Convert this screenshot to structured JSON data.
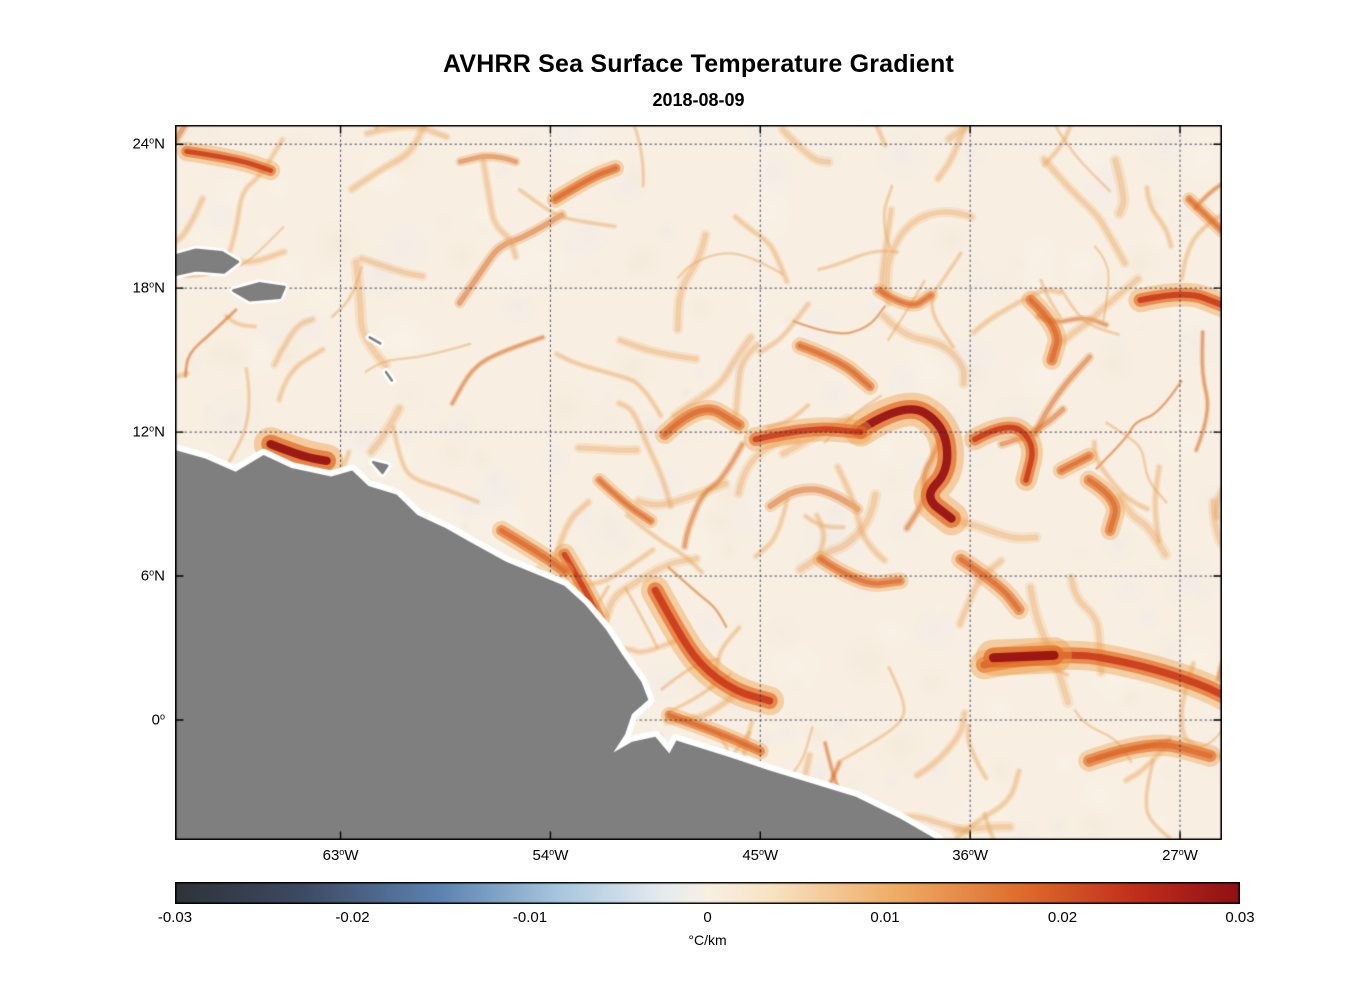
{
  "figure": {
    "title": "AVHRR Sea Surface Temperature Gradient",
    "subtitle": "2018-08-09"
  },
  "chart_data": {
    "type": "heatmap",
    "title": "AVHRR Sea Surface Temperature Gradient",
    "subtitle": "2018-08-09",
    "x_axis": {
      "ticks": [
        {
          "deg": "63",
          "dir": "W",
          "lon": -63
        },
        {
          "deg": "54",
          "dir": "W",
          "lon": -54
        },
        {
          "deg": "45",
          "dir": "W",
          "lon": -45
        },
        {
          "deg": "36",
          "dir": "W",
          "lon": -36
        },
        {
          "deg": "27",
          "dir": "W",
          "lon": -27
        }
      ],
      "range": [
        -70.1,
        -25.2
      ]
    },
    "y_axis": {
      "ticks": [
        {
          "deg": "24",
          "dir": "N",
          "lat": 24
        },
        {
          "deg": "18",
          "dir": "N",
          "lat": 18
        },
        {
          "deg": "12",
          "dir": "N",
          "lat": 12
        },
        {
          "deg": "6",
          "dir": "N",
          "lat": 6
        },
        {
          "deg": "0",
          "dir": "",
          "lat": 0
        }
      ],
      "range": [
        -5.0,
        24.8
      ]
    },
    "grid": "dotted",
    "colorbar": {
      "label": "°C/km",
      "min": -0.03,
      "max": 0.03,
      "ticks": [
        "-0.03",
        "-0.02",
        "-0.01",
        "0",
        "0.01",
        "0.02",
        "0.03"
      ],
      "stops": [
        {
          "pos": 0.0,
          "color": "#2f3338"
        },
        {
          "pos": 0.12,
          "color": "#3d4a63"
        },
        {
          "pos": 0.25,
          "color": "#5d83b0"
        },
        {
          "pos": 0.36,
          "color": "#a8c6de"
        },
        {
          "pos": 0.46,
          "color": "#e6ecef"
        },
        {
          "pos": 0.5,
          "color": "#f7f0e4"
        },
        {
          "pos": 0.56,
          "color": "#f8e3c3"
        },
        {
          "pos": 0.68,
          "color": "#eeab62"
        },
        {
          "pos": 0.8,
          "color": "#dd6a2a"
        },
        {
          "pos": 0.9,
          "color": "#c22f1c"
        },
        {
          "pos": 1.0,
          "color": "#8f1014"
        }
      ]
    },
    "map": {
      "ocean_base_color": "#f8efe2",
      "land_color": "#7f7f7f",
      "coast_halo_color": "#ffffff",
      "coastline": [
        [
          -71.5,
          11.3
        ],
        [
          -70.1,
          11.25
        ],
        [
          -68.8,
          10.9
        ],
        [
          -67.5,
          10.35
        ],
        [
          -66.3,
          11.05
        ],
        [
          -65.1,
          10.5
        ],
        [
          -63.4,
          10.15
        ],
        [
          -62.5,
          10.4
        ],
        [
          -61.8,
          9.75
        ],
        [
          -60.6,
          9.4
        ],
        [
          -59.7,
          8.55
        ],
        [
          -58.5,
          8.0
        ],
        [
          -57.4,
          7.4
        ],
        [
          -55.9,
          6.6
        ],
        [
          -54.4,
          6.0
        ],
        [
          -53.4,
          5.6
        ],
        [
          -52.5,
          4.8
        ],
        [
          -51.6,
          3.75
        ],
        [
          -50.9,
          2.7
        ],
        [
          -50.1,
          1.6
        ],
        [
          -49.8,
          0.85
        ],
        [
          -50.5,
          0.25
        ],
        [
          -50.8,
          -0.6
        ],
        [
          -51.3,
          -1.35
        ],
        [
          -50.5,
          -0.9
        ],
        [
          -49.5,
          -0.7
        ],
        [
          -48.9,
          -1.4
        ],
        [
          -48.6,
          -0.85
        ],
        [
          -47.6,
          -1.15
        ],
        [
          -46.3,
          -1.55
        ],
        [
          -44.6,
          -2.1
        ],
        [
          -42.9,
          -2.6
        ],
        [
          -40.9,
          -3.2
        ],
        [
          -39.0,
          -4.1
        ],
        [
          -37.4,
          -5.0
        ],
        [
          -36.9,
          -5.6
        ],
        [
          -71.5,
          -5.6
        ]
      ],
      "islands": [
        [
          [
            -70.3,
            19.3
          ],
          [
            -69.2,
            19.6
          ],
          [
            -68.1,
            19.5
          ],
          [
            -67.4,
            19.1
          ],
          [
            -68.0,
            18.65
          ],
          [
            -69.2,
            18.75
          ],
          [
            -70.3,
            18.5
          ]
        ],
        [
          [
            -67.6,
            17.9
          ],
          [
            -66.5,
            18.2
          ],
          [
            -65.4,
            18.05
          ],
          [
            -65.6,
            17.6
          ],
          [
            -66.9,
            17.5
          ]
        ],
        [
          [
            -61.75,
            15.95
          ],
          [
            -61.3,
            15.7
          ]
        ],
        [
          [
            -61.05,
            14.5
          ],
          [
            -60.8,
            14.15
          ]
        ],
        [
          [
            -61.6,
            10.75
          ],
          [
            -61.0,
            10.6
          ],
          [
            -61.2,
            10.3
          ]
        ]
      ],
      "filaments": [
        {
          "path": [
            [
              -40.7,
              12.1
            ],
            [
              -38.8,
              13.3
            ],
            [
              -37.1,
              12.3
            ],
            [
              -36.9,
              10.4
            ],
            [
              -38.0,
              9.3
            ],
            [
              -36.8,
              8.4
            ]
          ],
          "width": 14,
          "intensity": 0.95
        },
        {
          "path": [
            [
              -45.2,
              11.7
            ],
            [
              -42.9,
              12.2
            ],
            [
              -40.7,
              12.0
            ]
          ],
          "width": 10,
          "intensity": 0.8
        },
        {
          "path": [
            [
              -35.8,
              11.7
            ],
            [
              -34.3,
              12.5
            ],
            [
              -33.2,
              11.5
            ],
            [
              -33.6,
              10.0
            ]
          ],
          "width": 9,
          "intensity": 0.85
        },
        {
          "path": [
            [
              -49.5,
              5.4
            ],
            [
              -48.6,
              3.8
            ],
            [
              -47.6,
              2.3
            ],
            [
              -46.1,
              1.2
            ],
            [
              -44.6,
              0.8
            ]
          ],
          "width": 12,
          "intensity": 0.9
        },
        {
          "path": [
            [
              -53.4,
              6.9
            ],
            [
              -52.5,
              5.4
            ],
            [
              -51.9,
              4.2
            ]
          ],
          "width": 9,
          "intensity": 0.75
        },
        {
          "path": [
            [
              -35.4,
              2.3
            ],
            [
              -32.1,
              2.9
            ],
            [
              -28.7,
              2.3
            ],
            [
              -26.1,
              1.5
            ],
            [
              -24.7,
              0.8
            ]
          ],
          "width": 12,
          "intensity": 0.85
        },
        {
          "path": [
            [
              -35.0,
              2.6
            ],
            [
              -32.4,
              2.7
            ]
          ],
          "width": 15,
          "intensity": 1.0
        },
        {
          "path": [
            [
              -66.0,
              11.5
            ],
            [
              -64.7,
              11.0
            ],
            [
              -63.6,
              10.8
            ]
          ],
          "width": 14,
          "intensity": 1.0
        },
        {
          "path": [
            [
              -56.1,
              7.9
            ],
            [
              -54.4,
              6.9
            ],
            [
              -53.4,
              6.2
            ]
          ],
          "width": 8,
          "intensity": 0.7
        },
        {
          "path": [
            [
              -53.8,
              21.7
            ],
            [
              -52.3,
              22.6
            ],
            [
              -51.2,
              23.0
            ]
          ],
          "width": 7,
          "intensity": 0.7
        },
        {
          "path": [
            [
              -69.6,
              23.7
            ],
            [
              -67.5,
              23.4
            ],
            [
              -66.0,
              22.9
            ]
          ],
          "width": 8,
          "intensity": 0.75
        },
        {
          "path": [
            [
              -28.7,
              17.5
            ],
            [
              -26.8,
              17.9
            ],
            [
              -25.2,
              17.3
            ]
          ],
          "width": 10,
          "intensity": 0.85
        },
        {
          "path": [
            [
              -33.4,
              17.5
            ],
            [
              -32.1,
              16.3
            ],
            [
              -32.5,
              15.0
            ]
          ],
          "width": 8,
          "intensity": 0.7
        },
        {
          "path": [
            [
              -43.3,
              15.6
            ],
            [
              -41.6,
              15.0
            ],
            [
              -40.3,
              13.9
            ]
          ],
          "width": 7,
          "intensity": 0.6
        },
        {
          "path": [
            [
              -30.9,
              10.0
            ],
            [
              -29.6,
              9.2
            ],
            [
              -30.0,
              7.9
            ]
          ],
          "width": 8,
          "intensity": 0.65
        },
        {
          "path": [
            [
              -36.4,
              6.7
            ],
            [
              -34.7,
              5.6
            ],
            [
              -33.9,
              4.6
            ]
          ],
          "width": 8,
          "intensity": 0.6
        },
        {
          "path": [
            [
              -30.9,
              -1.7
            ],
            [
              -28.3,
              -0.8
            ],
            [
              -25.7,
              -1.5
            ]
          ],
          "width": 9,
          "intensity": 0.7
        },
        {
          "path": [
            [
              -48.9,
              0.2
            ],
            [
              -47.1,
              -0.4
            ],
            [
              -45.0,
              -1.3
            ]
          ],
          "width": 7,
          "intensity": 0.7
        },
        {
          "path": [
            [
              -42.4,
              6.7
            ],
            [
              -40.7,
              5.6
            ],
            [
              -39.0,
              5.8
            ]
          ],
          "width": 7,
          "intensity": 0.55
        },
        {
          "path": [
            [
              -26.6,
              21.7
            ],
            [
              -25.2,
              20.4
            ]
          ],
          "width": 6,
          "intensity": 0.5
        },
        {
          "path": [
            [
              -39.9,
              17.9
            ],
            [
              -38.6,
              17.1
            ],
            [
              -37.7,
              17.7
            ]
          ],
          "width": 6,
          "intensity": 0.5
        },
        {
          "path": [
            [
              -32.1,
              10.4
            ],
            [
              -30.9,
              11.0
            ]
          ],
          "width": 7,
          "intensity": 0.6
        },
        {
          "path": [
            [
              -49.1,
              11.9
            ],
            [
              -47.6,
              13.3
            ],
            [
              -45.9,
              12.3
            ]
          ],
          "width": 8,
          "intensity": 0.7
        },
        {
          "path": [
            [
              -51.9,
              10.0
            ],
            [
              -50.8,
              9.0
            ],
            [
              -49.7,
              8.3
            ]
          ],
          "width": 6,
          "intensity": 0.5
        }
      ]
    }
  }
}
